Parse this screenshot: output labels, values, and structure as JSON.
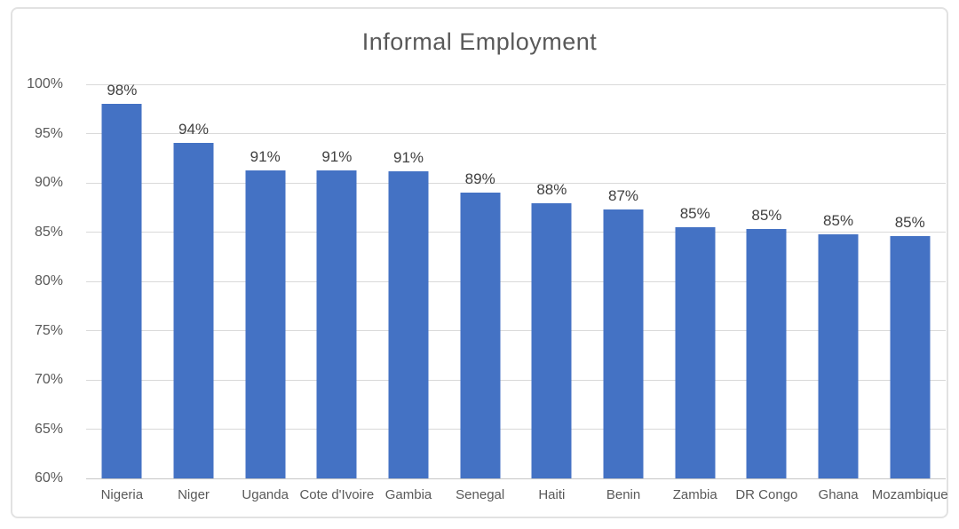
{
  "chart_data": {
    "type": "bar",
    "title": "Informal Employment",
    "categories": [
      "Nigeria",
      "Niger",
      "Uganda",
      "Cote d'Ivoire",
      "Gambia",
      "Senegal",
      "Haiti",
      "Benin",
      "Zambia",
      "DR Congo",
      "Ghana",
      "Mozambique"
    ],
    "values": [
      98,
      94,
      91,
      91,
      91,
      89,
      88,
      87,
      85,
      85,
      85,
      85
    ],
    "bar_labels": [
      "98%",
      "94%",
      "91%",
      "91%",
      "91%",
      "89%",
      "88%",
      "87%",
      "85%",
      "85%",
      "85%",
      "85%"
    ],
    "values_precise": [
      98,
      94.1,
      91.3,
      91.3,
      91.2,
      89,
      87.9,
      87.3,
      85.5,
      85.3,
      84.8,
      84.6
    ],
    "xlabel": "",
    "ylabel": "",
    "ylim": [
      60,
      100
    ],
    "y_ticks": [
      "100%",
      "95%",
      "90%",
      "85%",
      "80%",
      "75%",
      "70%",
      "65%",
      "60%"
    ],
    "grid": true,
    "legend": "none"
  },
  "colors": {
    "bar": "#4472C4",
    "gridline": "#D9D9D9",
    "axis_line": "#C6C6C6",
    "title_text": "#595959",
    "tick_text": "#595959",
    "bar_label_text": "#404040",
    "frame_border": "#E2E2E2",
    "background": "#FFFFFF"
  }
}
